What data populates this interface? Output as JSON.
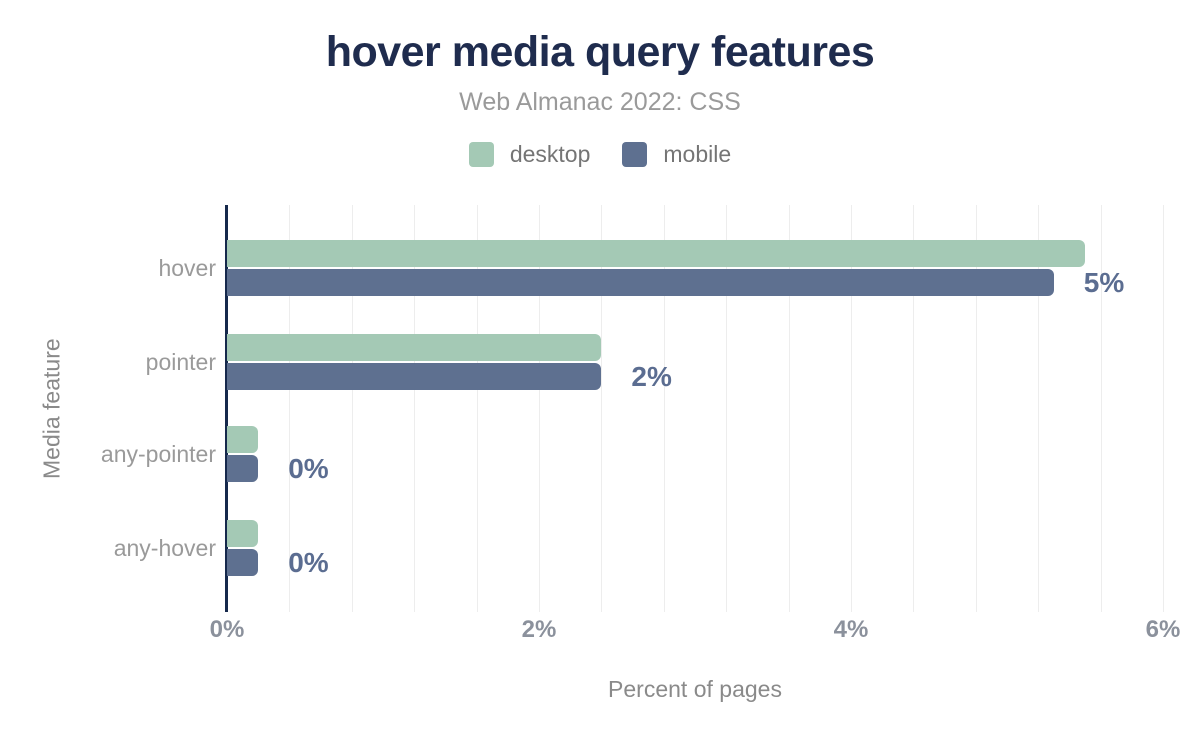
{
  "header": {
    "title": "hover media query features",
    "subtitle": "Web Almanac 2022: CSS"
  },
  "legend": [
    {
      "label": "desktop",
      "color": "#a4c9b5"
    },
    {
      "label": "mobile",
      "color": "#5e7090"
    }
  ],
  "chart_data": {
    "type": "bar",
    "orientation": "horizontal",
    "title": "hover media query features",
    "subtitle": "Web Almanac 2022: CSS",
    "categories": [
      "hover",
      "pointer",
      "any-pointer",
      "any-hover"
    ],
    "series": [
      {
        "name": "desktop",
        "color": "#a4c9b5",
        "values": [
          5.5,
          2.4,
          0.2,
          0.2
        ]
      },
      {
        "name": "mobile",
        "color": "#5e7090",
        "values": [
          5.3,
          2.4,
          0.2,
          0.2
        ]
      }
    ],
    "value_labels": [
      "5%",
      "2%",
      "0%",
      "0%"
    ],
    "xlabel": "Percent of pages",
    "ylabel": "Media feature",
    "xlim": [
      0,
      6
    ],
    "x_ticks": [
      "0%",
      "2%",
      "4%",
      "6%"
    ],
    "minor_gridline_step": 0.4,
    "grid": true,
    "legend_position": "top",
    "value_label_color": "#5b6d91",
    "axis_line_color": "#16294c",
    "title_color": "#1f2c4e"
  }
}
